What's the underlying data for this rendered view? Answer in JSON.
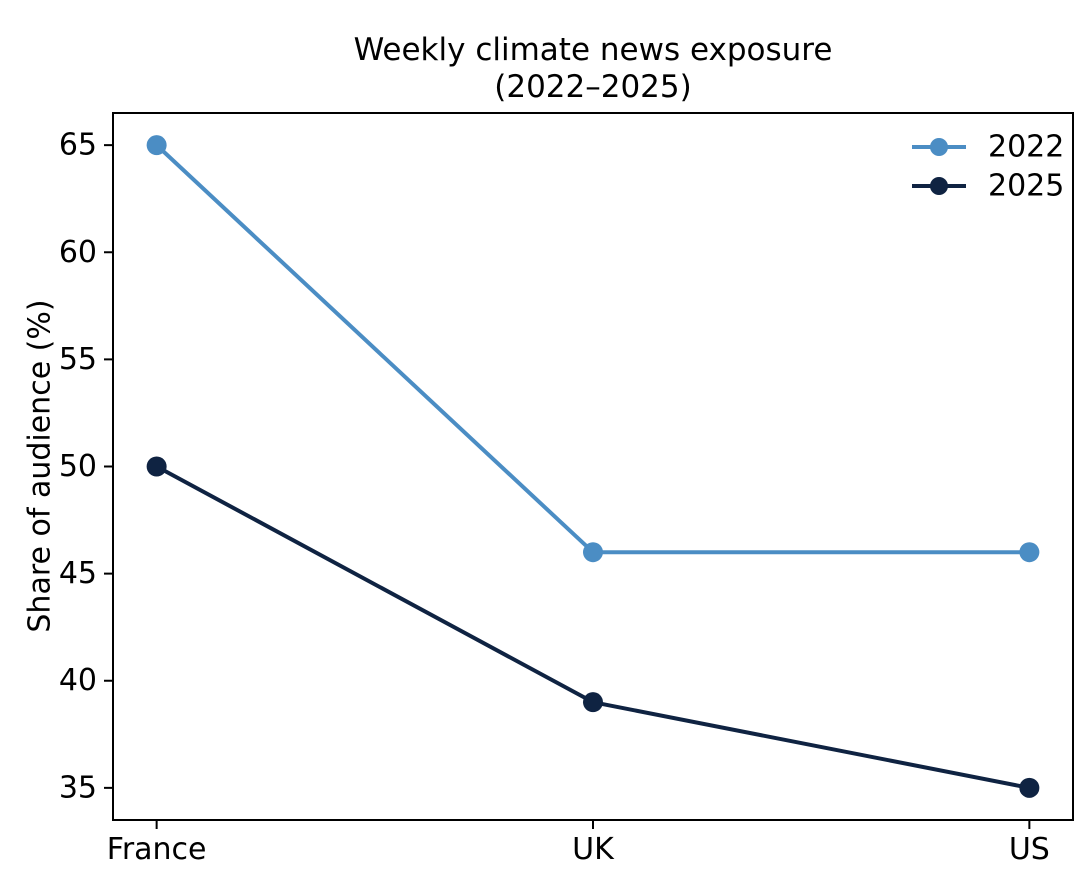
{
  "figure": {
    "background": "#ffffff"
  },
  "chart_data": {
    "type": "line",
    "title": "Weekly climate news exposure",
    "subtitle": "(2022–2025)",
    "ylabel": "Share of audience (%)",
    "xlabel": "",
    "categories": [
      "France",
      "UK",
      "US"
    ],
    "series": [
      {
        "name": "2022",
        "values": [
          65,
          46,
          46
        ],
        "color": "#4b8dc4"
      },
      {
        "name": "2025",
        "values": [
          50,
          39,
          35
        ],
        "color": "#0f2342"
      }
    ],
    "yticks": [
      35,
      40,
      45,
      50,
      55,
      60,
      65
    ],
    "ylim": [
      33.5,
      66.5
    ],
    "xlim": [
      -0.1,
      2.1
    ],
    "grid": false,
    "legend": {
      "position": "upper right",
      "frame": false
    },
    "axis_color": "#000000",
    "marker": "circle",
    "line_width": 4,
    "marker_radius": 10
  }
}
